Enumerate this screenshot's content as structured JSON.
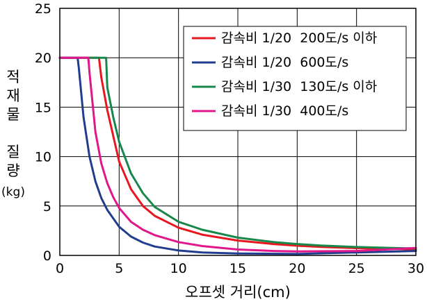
{
  "chart_data": {
    "type": "line",
    "title": "",
    "xlabel": "오프셋 거리(cm)",
    "ylabel": "적재물 질량",
    "yunit": "(kg)",
    "xlim": [
      0,
      30
    ],
    "ylim": [
      0,
      25
    ],
    "xticks": [
      0,
      5,
      10,
      15,
      20,
      25,
      30
    ],
    "yticks": [
      0,
      5,
      10,
      15,
      20,
      25
    ],
    "grid": true,
    "legend_position": "top-right",
    "series": [
      {
        "name": "감속비 1/20  200도/s 이하",
        "color": "#e8161e",
        "x": [
          0,
          1,
          2,
          3.3,
          3.5,
          4,
          5,
          6,
          7,
          8,
          10,
          12,
          15,
          18,
          20,
          22,
          25,
          28,
          30
        ],
        "y": [
          20,
          20,
          20,
          20,
          18,
          14.7,
          9.5,
          6.7,
          5.0,
          4.0,
          2.8,
          2.1,
          1.5,
          1.15,
          0.98,
          0.86,
          0.74,
          0.66,
          0.62
        ]
      },
      {
        "name": "감속비 1/20  600도/s",
        "color": "#1f3c8f",
        "x": [
          0,
          1,
          1.5,
          1.6,
          2,
          2.5,
          3,
          3.5,
          4,
          5,
          6,
          7,
          8,
          10,
          12,
          15,
          20,
          25,
          30
        ],
        "y": [
          20,
          20,
          20,
          19,
          14,
          10,
          7.5,
          5.8,
          4.6,
          2.9,
          1.9,
          1.3,
          0.9,
          0.5,
          0.3,
          0.2,
          0.15,
          0.3,
          0.45
        ]
      },
      {
        "name": "감속비 1/30  130도/s 이하",
        "color": "#17884a",
        "x": [
          0,
          1,
          2,
          3,
          3.9,
          4,
          4.5,
          5,
          6,
          7,
          8,
          10,
          12,
          15,
          18,
          20,
          22,
          25,
          28,
          30
        ],
        "y": [
          20,
          20,
          20,
          20,
          20,
          17,
          14,
          11.5,
          8.3,
          6.3,
          4.9,
          3.4,
          2.6,
          1.8,
          1.35,
          1.15,
          1.0,
          0.85,
          0.75,
          0.7
        ]
      },
      {
        "name": "감속비 1/30  400도/s",
        "color": "#e0168a",
        "x": [
          0,
          1,
          2,
          2.4,
          2.5,
          3,
          3.5,
          4,
          4.5,
          5,
          6,
          7,
          8,
          10,
          12,
          15,
          18,
          20,
          25,
          30
        ],
        "y": [
          20,
          20,
          20,
          20,
          18.5,
          12.5,
          9.3,
          7.3,
          5.9,
          4.8,
          3.4,
          2.6,
          2.05,
          1.35,
          0.95,
          0.6,
          0.45,
          0.4,
          0.45,
          0.75
        ]
      }
    ]
  }
}
